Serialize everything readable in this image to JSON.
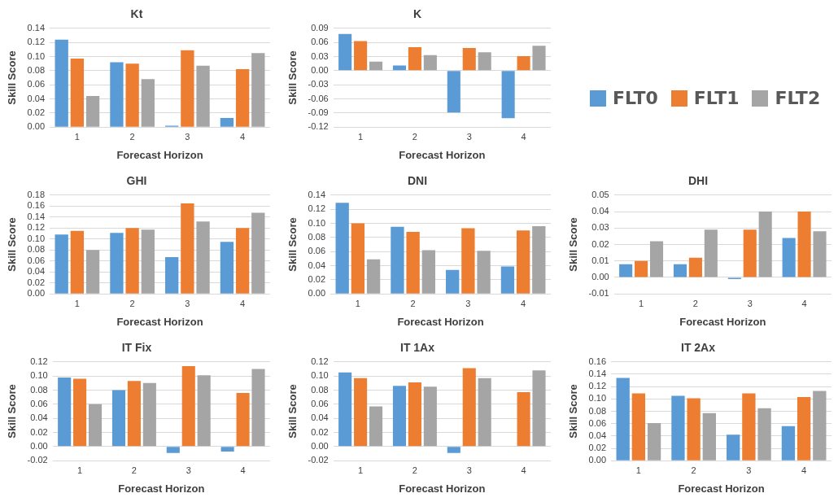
{
  "chart_data": [
    {
      "type": "bar",
      "title": "Kt",
      "xlabel": "Forecast Horizon",
      "ylabel": "Skill Score",
      "categories": [
        "1",
        "2",
        "3",
        "4"
      ],
      "series": [
        {
          "color": "#5b9bd5",
          "values": [
            0.124,
            0.092,
            0.002,
            0.013
          ]
        },
        {
          "color": "#ed7d31",
          "values": [
            0.097,
            0.09,
            0.109,
            0.082
          ]
        },
        {
          "color": "#a5a5a5",
          "values": [
            0.044,
            0.068,
            0.087,
            0.105
          ]
        }
      ],
      "ylim": [
        0,
        0.14
      ],
      "yticks": [
        {
          "value": 0,
          "label": "0.00"
        },
        {
          "value": 0.02,
          "label": "0.02"
        },
        {
          "value": 0.04,
          "label": "0.04"
        },
        {
          "value": 0.06,
          "label": "0.06"
        },
        {
          "value": 0.08,
          "label": "0.08"
        },
        {
          "value": 0.1,
          "label": "0.10"
        },
        {
          "value": 0.12,
          "label": "0.12"
        },
        {
          "value": 0.14,
          "label": "0.14"
        }
      ],
      "grid": "y"
    },
    {
      "type": "bar",
      "title": "K",
      "xlabel": "Forecast Horizon",
      "ylabel": "Skill Score",
      "categories": [
        "1",
        "2",
        "3",
        "4"
      ],
      "series": [
        {
          "name": "FLT0",
          "color": "#5b9bd5",
          "values": [
            0.078,
            0.011,
            -0.089,
            -0.101
          ]
        },
        {
          "name": "FLT1",
          "color": "#ed7d31",
          "values": [
            0.063,
            0.05,
            0.048,
            0.031
          ]
        },
        {
          "name": "FLT2",
          "color": "#a5a5a5",
          "values": [
            0.019,
            0.033,
            0.039,
            0.053
          ]
        }
      ],
      "ylim": [
        -0.12,
        0.09
      ],
      "yticks": [
        {
          "value": -0.12,
          "label": "-0.12"
        },
        {
          "value": -0.09,
          "label": "-0.09"
        },
        {
          "value": -0.06,
          "label": "-0.06"
        },
        {
          "value": -0.03,
          "label": "-0.03"
        },
        {
          "value": 0,
          "label": "0.00"
        },
        {
          "value": 0.03,
          "label": "0.03"
        },
        {
          "value": 0.06,
          "label": "0.06"
        },
        {
          "value": 0.09,
          "label": "0.09"
        }
      ],
      "grid": "y",
      "legend": "right"
    },
    {
      "type": "bar",
      "title": "GHI",
      "xlabel": "Forecast Horizon",
      "ylabel": "Skill Score",
      "categories": [
        "1",
        "2",
        "3",
        "4"
      ],
      "series": [
        {
          "color": "#5b9bd5",
          "values": [
            0.108,
            0.111,
            0.067,
            0.095
          ]
        },
        {
          "color": "#ed7d31",
          "values": [
            0.115,
            0.12,
            0.165,
            0.12
          ]
        },
        {
          "color": "#a5a5a5",
          "values": [
            0.08,
            0.117,
            0.132,
            0.148
          ]
        }
      ],
      "ylim": [
        0,
        0.18
      ],
      "yticks": [
        {
          "value": 0,
          "label": "0.00"
        },
        {
          "value": 0.02,
          "label": "0.02"
        },
        {
          "value": 0.04,
          "label": "0.04"
        },
        {
          "value": 0.06,
          "label": "0.06"
        },
        {
          "value": 0.08,
          "label": "0.08"
        },
        {
          "value": 0.1,
          "label": "0.10"
        },
        {
          "value": 0.12,
          "label": "0.12"
        },
        {
          "value": 0.14,
          "label": "0.14"
        },
        {
          "value": 0.16,
          "label": "0.16"
        },
        {
          "value": 0.18,
          "label": "0.18"
        }
      ],
      "grid": "y"
    },
    {
      "type": "bar",
      "title": "DNI",
      "xlabel": "Forecast Horizon",
      "ylabel": "Skill Score",
      "categories": [
        "1",
        "2",
        "3",
        "4"
      ],
      "series": [
        {
          "color": "#5b9bd5",
          "values": [
            0.129,
            0.095,
            0.034,
            0.039
          ]
        },
        {
          "color": "#ed7d31",
          "values": [
            0.1,
            0.088,
            0.093,
            0.09
          ]
        },
        {
          "color": "#a5a5a5",
          "values": [
            0.049,
            0.062,
            0.061,
            0.096
          ]
        }
      ],
      "ylim": [
        0,
        0.14
      ],
      "yticks": [
        {
          "value": 0,
          "label": "0.00"
        },
        {
          "value": 0.02,
          "label": "0.02"
        },
        {
          "value": 0.04,
          "label": "0.04"
        },
        {
          "value": 0.06,
          "label": "0.06"
        },
        {
          "value": 0.08,
          "label": "0.08"
        },
        {
          "value": 0.1,
          "label": "0.10"
        },
        {
          "value": 0.12,
          "label": "0.12"
        },
        {
          "value": 0.14,
          "label": "0.14"
        }
      ],
      "grid": "y"
    },
    {
      "type": "bar",
      "title": "DHI",
      "xlabel": "Forecast Horizon",
      "ylabel": "Skill Score",
      "categories": [
        "1",
        "2",
        "3",
        "4"
      ],
      "series": [
        {
          "color": "#5b9bd5",
          "values": [
            0.008,
            0.008,
            -0.001,
            0.024
          ]
        },
        {
          "color": "#ed7d31",
          "values": [
            0.01,
            0.012,
            0.029,
            0.04
          ]
        },
        {
          "color": "#a5a5a5",
          "values": [
            0.022,
            0.029,
            0.04,
            0.028
          ]
        }
      ],
      "ylim": [
        -0.01,
        0.05
      ],
      "yticks": [
        {
          "value": -0.01,
          "label": "-0.01"
        },
        {
          "value": 0,
          "label": "0.00"
        },
        {
          "value": 0.01,
          "label": "0.01"
        },
        {
          "value": 0.02,
          "label": "0.02"
        },
        {
          "value": 0.03,
          "label": "0.03"
        },
        {
          "value": 0.04,
          "label": "0.04"
        },
        {
          "value": 0.05,
          "label": "0.05"
        }
      ],
      "grid": "y"
    },
    {
      "type": "bar",
      "title": "IT Fix",
      "xlabel": "Forecast Horizon",
      "ylabel": "Skill Score",
      "categories": [
        "1",
        "2",
        "3",
        "4"
      ],
      "series": [
        {
          "color": "#5b9bd5",
          "values": [
            0.098,
            0.08,
            -0.009,
            -0.007
          ]
        },
        {
          "color": "#ed7d31",
          "values": [
            0.096,
            0.093,
            0.114,
            0.076
          ]
        },
        {
          "color": "#a5a5a5",
          "values": [
            0.06,
            0.09,
            0.101,
            0.11
          ]
        }
      ],
      "ylim": [
        -0.02,
        0.12
      ],
      "yticks": [
        {
          "value": -0.02,
          "label": "-0.02"
        },
        {
          "value": 0,
          "label": "0.00"
        },
        {
          "value": 0.02,
          "label": "0.02"
        },
        {
          "value": 0.04,
          "label": "0.04"
        },
        {
          "value": 0.06,
          "label": "0.06"
        },
        {
          "value": 0.08,
          "label": "0.08"
        },
        {
          "value": 0.1,
          "label": "0.10"
        },
        {
          "value": 0.12,
          "label": "0.12"
        }
      ],
      "grid": "y"
    },
    {
      "type": "bar",
      "title": "IT 1Ax",
      "xlabel": "Forecast Horizon",
      "ylabel": "Skill Score",
      "categories": [
        "1",
        "2",
        "3",
        "4"
      ],
      "series": [
        {
          "color": "#5b9bd5",
          "values": [
            0.105,
            0.086,
            -0.009,
            0
          ]
        },
        {
          "color": "#ed7d31",
          "values": [
            0.097,
            0.091,
            0.111,
            0.077
          ]
        },
        {
          "color": "#a5a5a5",
          "values": [
            0.057,
            0.085,
            0.097,
            0.108
          ]
        }
      ],
      "ylim": [
        -0.02,
        0.12
      ],
      "yticks": [
        {
          "value": -0.02,
          "label": "-0.02"
        },
        {
          "value": 0,
          "label": "0.00"
        },
        {
          "value": 0.02,
          "label": "0.02"
        },
        {
          "value": 0.04,
          "label": "0.04"
        },
        {
          "value": 0.06,
          "label": "0.06"
        },
        {
          "value": 0.08,
          "label": "0.08"
        },
        {
          "value": 0.1,
          "label": "0.10"
        },
        {
          "value": 0.12,
          "label": "0.12"
        }
      ],
      "grid": "y"
    },
    {
      "type": "bar",
      "title": "IT 2Ax",
      "xlabel": "Forecast Horizon",
      "ylabel": "Skill Score",
      "categories": [
        "1",
        "2",
        "3",
        "4"
      ],
      "series": [
        {
          "color": "#5b9bd5",
          "values": [
            0.134,
            0.105,
            0.042,
            0.056
          ]
        },
        {
          "color": "#ed7d31",
          "values": [
            0.109,
            0.101,
            0.109,
            0.103
          ]
        },
        {
          "color": "#a5a5a5",
          "values": [
            0.061,
            0.077,
            0.085,
            0.113
          ]
        }
      ],
      "ylim": [
        0,
        0.16
      ],
      "yticks": [
        {
          "value": 0,
          "label": "0.00"
        },
        {
          "value": 0.02,
          "label": "0.02"
        },
        {
          "value": 0.04,
          "label": "0.04"
        },
        {
          "value": 0.06,
          "label": "0.06"
        },
        {
          "value": 0.08,
          "label": "0.08"
        },
        {
          "value": 0.1,
          "label": "0.10"
        },
        {
          "value": 0.12,
          "label": "0.12"
        },
        {
          "value": 0.14,
          "label": "0.14"
        },
        {
          "value": 0.16,
          "label": "0.16"
        }
      ],
      "grid": "y"
    }
  ]
}
